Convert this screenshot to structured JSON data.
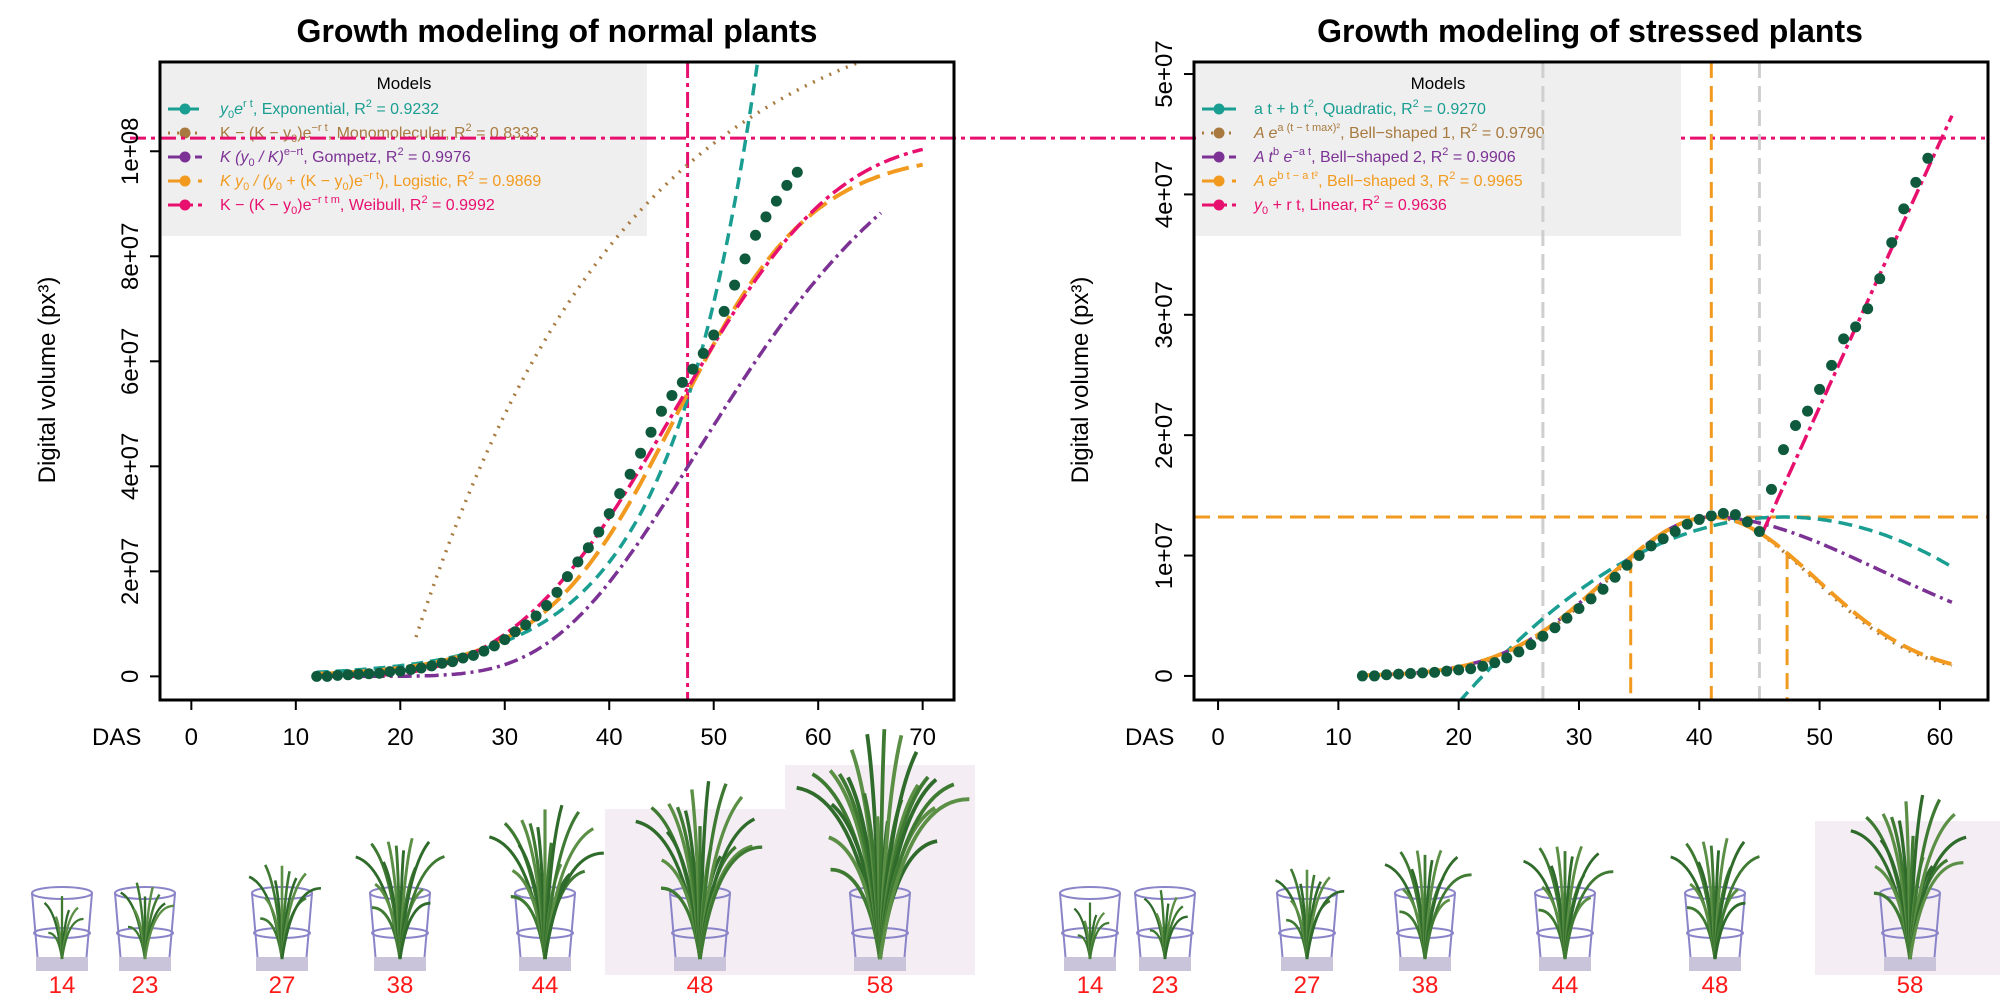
{
  "chart_data": [
    {
      "type": "line",
      "title": "Growth modeling of normal plants",
      "xlabel": "DAS",
      "ylabel": "Digital volume (px³)",
      "xlim": [
        -3,
        73
      ],
      "ylim": [
        -4500000,
        117000000
      ],
      "x_ticks": [
        0,
        10,
        20,
        30,
        40,
        50,
        60,
        70
      ],
      "y_ticks": [
        0,
        20000000,
        40000000,
        60000000,
        80000000,
        100000000
      ],
      "y_tick_labels": [
        "0",
        "2e+07",
        "4e+07",
        "6e+07",
        "8e+07",
        "1e+08"
      ],
      "legend_title": "Models",
      "legend_placement": "top-left",
      "series": [
        {
          "formula": "y₀e^(rt)",
          "name": "Exponential",
          "r2": "R² = 0.9232",
          "color": "#1a9e92",
          "dash": "12,7",
          "marker": "dot",
          "label_parts": [
            "y",
            "0",
            "e",
            "r t",
            ", Exponential,    R",
            "2",
            " = 0.9232"
          ]
        },
        {
          "formula": "K − (K − y₀)e^(−rt)",
          "name": "Monomolecular",
          "r2": "R² = 0.8333",
          "color": "#a87a3f",
          "dash": "2,7",
          "marker": "dot",
          "label_parts": [
            "K − (K − y",
            "0",
            ")e",
            "−r t",
            ", Monomolecular,    R",
            "2",
            " = 0.8333"
          ]
        },
        {
          "formula": "K(y₀/K)^(e^(−rt))",
          "name": "Gompetz",
          "r2": "R² = 0.9976",
          "color": "#7b3294",
          "dash": "14,5,3,5",
          "marker": "dot",
          "label_parts": [
            "K (y",
            "0",
            " / K)",
            "e−rt",
            ", Gompetz,    R",
            "2",
            " = 0.9976"
          ]
        },
        {
          "formula": "Ky₀/(y₀ + (K − y₀)e^(−rt))",
          "name": "Logistic",
          "r2": "R² = 0.9869",
          "color": "#f29a1f",
          "dash": "22,8",
          "marker": "dot",
          "label_parts": [
            "K y",
            "0",
            " / (y",
            "0",
            " + (K − y",
            "0",
            ")e",
            "−r t",
            "), Logistic,    R",
            "2",
            " = 0.9869"
          ]
        },
        {
          "formula": "K − (K − y₀)e^(−rt^m)",
          "name": "Weibull",
          "r2": "R² = 0.9992",
          "color": "#e8106f",
          "dash": "16,5,4,5",
          "marker": "dot",
          "label_parts": [
            "K − (K − y",
            "0",
            ")e",
            "−r t m",
            ", Weibull,    R",
            "2",
            " = 0.9992"
          ]
        }
      ],
      "observed_color": "#0f5a3c",
      "observed": {
        "x": [
          12,
          13,
          14,
          15,
          16,
          17,
          18,
          19,
          20,
          21,
          22,
          23,
          24,
          25,
          26,
          27,
          28,
          29,
          30,
          31,
          32,
          33,
          34,
          35,
          36,
          37,
          38,
          39,
          40,
          41,
          42,
          43,
          44,
          45,
          46,
          47,
          48,
          49,
          50,
          51,
          52,
          53,
          54,
          55,
          56,
          57,
          58
        ],
        "y": [
          0,
          0,
          200000,
          300000,
          400000,
          500000,
          600000,
          900000,
          1000000,
          1300000,
          1600000,
          2000000,
          2500000,
          2800000,
          3500000,
          4000000,
          4800000,
          5800000,
          7000000,
          8500000,
          9800000,
          11500000,
          13500000,
          16000000,
          19000000,
          21800000,
          24500000,
          27500000,
          31000000,
          34800000,
          38500000,
          42500000,
          46500000,
          50500000,
          53500000,
          56000000,
          58500000,
          61500000,
          65000000,
          69500000,
          74500000,
          79500000,
          84000000,
          87500000,
          90500000,
          93500000,
          96000000
        ]
      },
      "reference_lines": {
        "vertical_x": 47.5,
        "horizontal_y": 102500000,
        "color": "#e8106f"
      }
    },
    {
      "type": "line",
      "title": "Growth modeling of stressed plants",
      "xlabel": "DAS",
      "ylabel": "Digital volume (px³)",
      "xlim": [
        -2,
        64
      ],
      "ylim": [
        -2000000,
        51000000
      ],
      "x_ticks": [
        0,
        10,
        20,
        30,
        40,
        50,
        60
      ],
      "y_ticks": [
        0,
        10000000,
        20000000,
        30000000,
        40000000,
        50000000
      ],
      "y_tick_labels": [
        "0",
        "1e+07",
        "2e+07",
        "3e+07",
        "4e+07",
        "5e+07"
      ],
      "legend_title": "Models",
      "legend_placement": "top-left",
      "series": [
        {
          "name": "Quadratic",
          "r2": "R² = 0.9270",
          "color": "#1a9e92",
          "dash": "14,7",
          "label_parts": [
            "a t + b t",
            "2",
            ", Quadratic,    R",
            "2",
            " = 0.9270"
          ]
        },
        {
          "name": "Bell−shaped 1",
          "r2": "R² = 0.9790",
          "color": "#a87a3f",
          "dash": "2,7",
          "label_parts": [
            "A e",
            "a (t − t max)²",
            ", Bell−shaped 1,    R",
            "2",
            " = 0.9790"
          ]
        },
        {
          "name": "Bell−shaped 2",
          "r2": "R² = 0.9906",
          "color": "#7b3294",
          "dash": "14,5,3,5",
          "label_parts": [
            "A t",
            "b",
            " e",
            "−a t",
            ", Bell−shaped 2,    R",
            "2",
            " = 0.9906"
          ]
        },
        {
          "name": "Bell−shaped 3",
          "r2": "R² = 0.9965",
          "color": "#f29a1f",
          "dash": "22,8",
          "label_parts": [
            "A e",
            "b t − a t²",
            ", Bell−shaped 3,    R",
            "2",
            " = 0.9965"
          ]
        },
        {
          "name": "Linear",
          "r2": "R² = 0.9636",
          "color": "#e8106f",
          "dash": "16,5,4,5",
          "label_parts": [
            "y",
            "0",
            " + r t, Linear,    R",
            "2",
            " = 0.9636"
          ]
        }
      ],
      "observed_color": "#0f5a3c",
      "observed": {
        "x": [
          12,
          13,
          14,
          15,
          16,
          17,
          18,
          19,
          20,
          21,
          22,
          23,
          24,
          25,
          26,
          27,
          28,
          29,
          30,
          31,
          32,
          33,
          34,
          35,
          36,
          37,
          38,
          39,
          40,
          41,
          42,
          43,
          44,
          45,
          46,
          47,
          48,
          49,
          50,
          51,
          52,
          53,
          54,
          55,
          56,
          57,
          58,
          59
        ],
        "y": [
          0,
          0,
          100000,
          150000,
          200000,
          250000,
          300000,
          400000,
          500000,
          600000,
          800000,
          1100000,
          1500000,
          2000000,
          2600000,
          3300000,
          4000000,
          4800000,
          5600000,
          6400000,
          7200000,
          8200000,
          9200000,
          10000000,
          10800000,
          11400000,
          12000000,
          12600000,
          13000000,
          13300000,
          13500000,
          13400000,
          12800000,
          12000000,
          15500000,
          18800000,
          20800000,
          22000000,
          23800000,
          25800000,
          28000000,
          29000000,
          30500000,
          33000000,
          36000000,
          38800000,
          41000000,
          43000000
        ]
      },
      "reference_lines": {
        "vertical_x": [
          27,
          41,
          45
        ],
        "horizontal_y": 13200000,
        "drop_x": [
          34.3,
          47.3
        ],
        "color": "#f29a1f"
      }
    }
  ],
  "photos_left": {
    "day_labels": [
      "14",
      "23",
      "27",
      "38",
      "44",
      "48",
      "58"
    ],
    "sizes": [
      0.15,
      0.22,
      0.32,
      0.45,
      0.58,
      0.68,
      0.9
    ]
  },
  "photos_right": {
    "day_labels": [
      "14",
      "23",
      "27",
      "38",
      "44",
      "48",
      "58"
    ],
    "sizes": [
      0.12,
      0.18,
      0.3,
      0.4,
      0.42,
      0.45,
      0.62
    ]
  }
}
